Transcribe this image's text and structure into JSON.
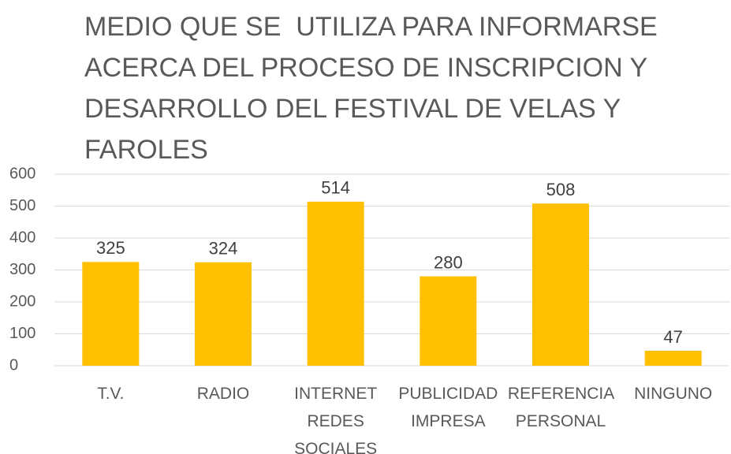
{
  "chart_data": {
    "type": "bar",
    "title": "MEDIO QUE SE  UTILIZA PARA INFORMARSE ACERCA DEL PROCESO DE INSCRIPCION Y DESARROLLO DEL FESTIVAL DE VELAS Y FAROLES",
    "categories": [
      "T.V.",
      "RADIO",
      "INTERNET REDES SOCIALES",
      "PUBLICIDAD IMPRESA",
      "REFERENCIA PERSONAL",
      "NINGUNO"
    ],
    "values": [
      325,
      324,
      514,
      280,
      508,
      47
    ],
    "color": "#ffc000",
    "ylim": [
      0,
      600
    ],
    "yticks": [
      0,
      100,
      200,
      300,
      400,
      500,
      600
    ],
    "grid": true
  }
}
